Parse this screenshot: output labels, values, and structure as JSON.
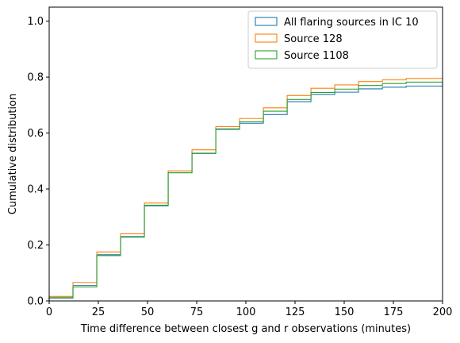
{
  "chart_data": {
    "type": "line",
    "step": true,
    "title": "",
    "xlabel": "Time difference between closest g and r observations (minutes)",
    "ylabel": "Cumulative distribution",
    "xlim": [
      0,
      200
    ],
    "ylim": [
      0,
      1.05
    ],
    "xticks": [
      0,
      25,
      50,
      75,
      100,
      125,
      150,
      175,
      200
    ],
    "yticks": [
      0.0,
      0.2,
      0.4,
      0.6,
      0.8,
      1.0
    ],
    "xtick_labels": [
      "0",
      "25",
      "50",
      "75",
      "100",
      "125",
      "150",
      "175",
      "200"
    ],
    "ytick_labels": [
      "0.0",
      "0.2",
      "0.4",
      "0.6",
      "0.8",
      "1.0"
    ],
    "grid": false,
    "legend_position": "top-right",
    "bin_edges": [
      0,
      12.1,
      24.2,
      36.3,
      48.4,
      60.5,
      72.6,
      84.7,
      96.8,
      108.9,
      121.0,
      133.1,
      145.2,
      157.3,
      169.4,
      181.5,
      200
    ],
    "series": [
      {
        "name": "All flaring sources in IC 10",
        "color": "#1f77b4",
        "values": [
          0.01,
          0.055,
          0.165,
          0.23,
          0.34,
          0.458,
          0.527,
          0.613,
          0.635,
          0.666,
          0.712,
          0.738,
          0.746,
          0.758,
          0.764,
          0.768,
          0.772
        ]
      },
      {
        "name": "Source 128",
        "color": "#ff7f0e",
        "values": [
          0.016,
          0.066,
          0.175,
          0.24,
          0.35,
          0.465,
          0.54,
          0.623,
          0.652,
          0.69,
          0.734,
          0.76,
          0.772,
          0.784,
          0.79,
          0.795,
          0.795
        ]
      },
      {
        "name": "Source 1108",
        "color": "#2ca02c",
        "values": [
          0.012,
          0.05,
          0.162,
          0.228,
          0.342,
          0.458,
          0.528,
          0.615,
          0.64,
          0.678,
          0.72,
          0.745,
          0.757,
          0.77,
          0.777,
          0.782,
          0.783
        ]
      }
    ]
  }
}
